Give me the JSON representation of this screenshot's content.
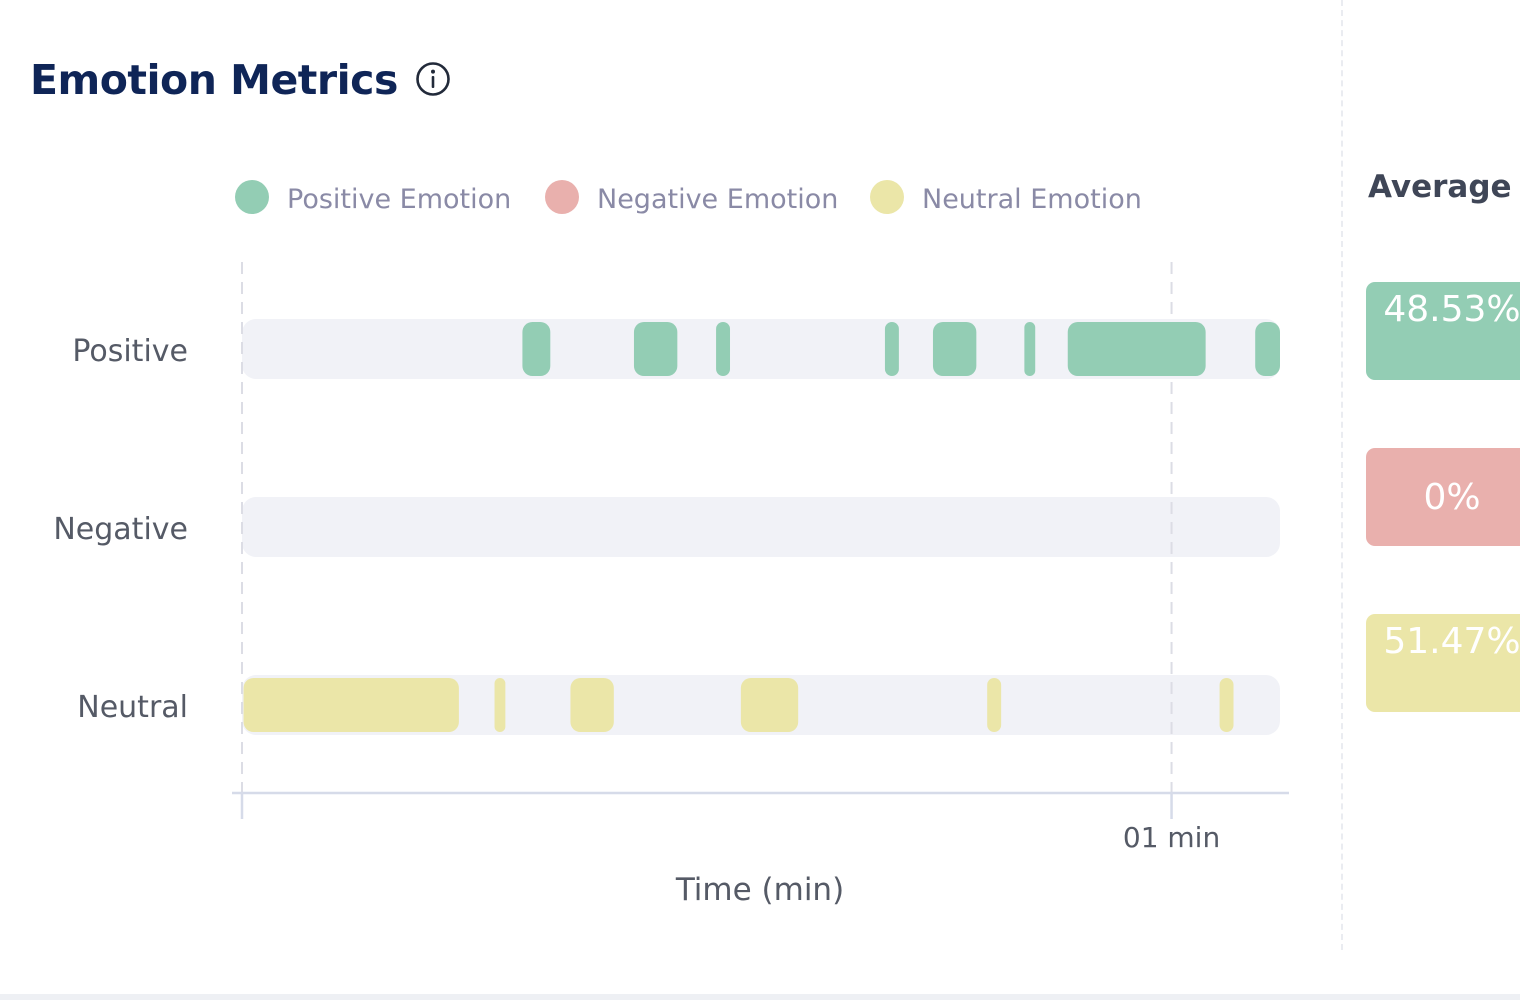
{
  "header": {
    "title": "Emotion Metrics",
    "info_icon": "info-circle-icon"
  },
  "side_panel": {
    "title": "Average F",
    "cards": [
      {
        "id": "positive",
        "value": "48.53%",
        "color": "#93cdb4"
      },
      {
        "id": "negative",
        "value": "0%",
        "color": "#e9b0ad"
      },
      {
        "id": "neutral",
        "value": "51.47%",
        "color": "#ebe6a8"
      }
    ]
  },
  "colors": {
    "track": "#f1f2f7",
    "gridline": "#dcdde5",
    "axis": "#d6dbe9",
    "legend_text": "#8a8aa6",
    "label_text": "#555a66",
    "title": "#0f2557"
  },
  "chart_data": {
    "type": "timeline",
    "title": "",
    "xlabel": "Time (min)",
    "ylabel": "",
    "xlim": [
      0,
      67
    ],
    "x_ticks": [
      {
        "value": 0,
        "label": ""
      },
      {
        "value": 60,
        "label": "01 min"
      }
    ],
    "grid": true,
    "legend_position": "top",
    "legend": [
      {
        "name": "Positive Emotion",
        "color": "#93cdb4"
      },
      {
        "name": "Negative Emotion",
        "color": "#e9b0ad"
      },
      {
        "name": "Neutral Emotion",
        "color": "#ebe6a8"
      }
    ],
    "series": [
      {
        "label": "Positive",
        "color": "#93cdb4",
        "segments": [
          [
            18.1,
            19.9
          ],
          [
            25.3,
            28.1
          ],
          [
            30.6,
            31.5
          ],
          [
            41.5,
            42.4
          ],
          [
            44.6,
            47.4
          ],
          [
            50.5,
            51.2
          ],
          [
            53.3,
            62.2
          ],
          [
            65.4,
            67.0
          ]
        ]
      },
      {
        "label": "Negative",
        "color": "#e9b0ad",
        "segments": []
      },
      {
        "label": "Neutral",
        "color": "#ebe6a8",
        "segments": [
          [
            0.1,
            14.0
          ],
          [
            16.3,
            17.0
          ],
          [
            21.2,
            24.0
          ],
          [
            32.2,
            35.9
          ],
          [
            48.1,
            49.0
          ],
          [
            63.1,
            64.0
          ]
        ]
      }
    ]
  }
}
